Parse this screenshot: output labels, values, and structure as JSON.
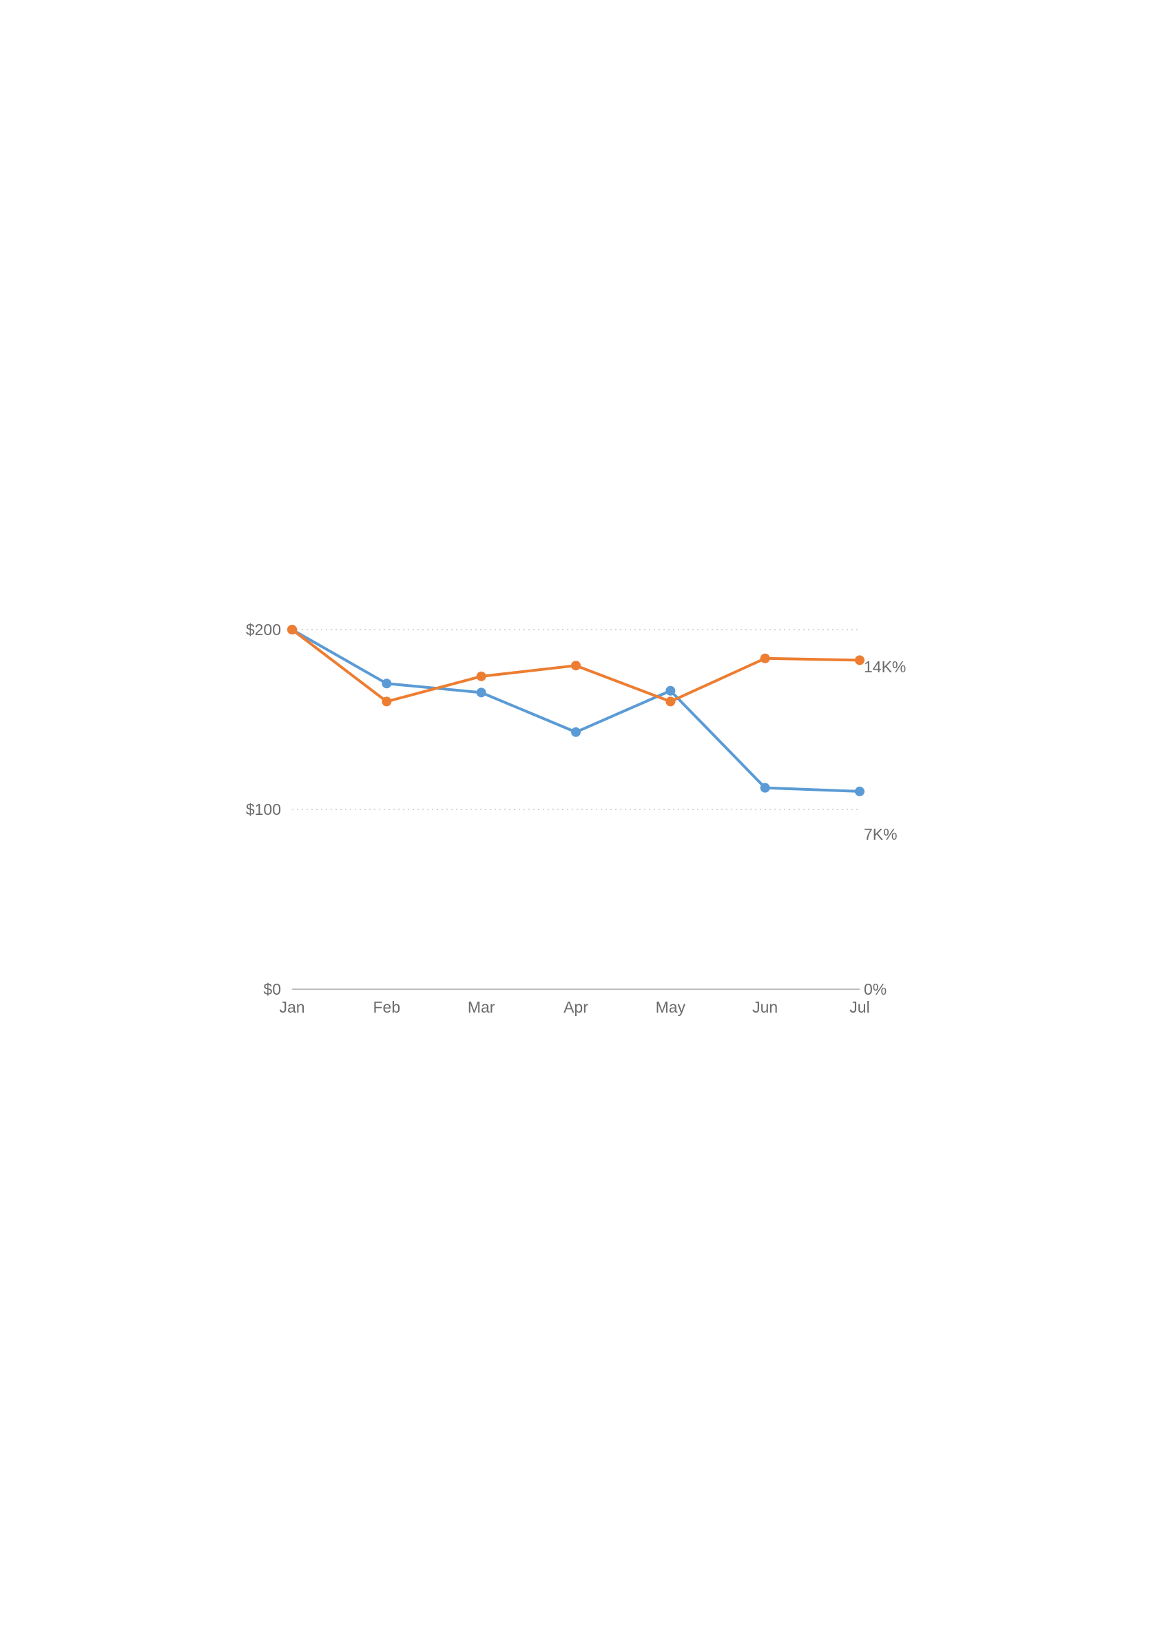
{
  "chart_data": {
    "type": "line",
    "title": "",
    "xlabel": "",
    "ylabel": "",
    "categories": [
      "Jan",
      "Feb",
      "Mar",
      "Apr",
      "May",
      "Jun",
      "Jul"
    ],
    "y_axis_left": {
      "ticks": [
        "$0",
        "$100",
        "$200"
      ],
      "tick_values": [
        0,
        100,
        200
      ],
      "ylim": [
        0,
        200
      ]
    },
    "y_axis_right": {
      "ticks": [
        "0%",
        "7K%",
        "14K%"
      ],
      "tick_values": [
        0,
        7000,
        14000
      ],
      "ylim": [
        0,
        15000
      ]
    },
    "grid": "dotted horizontal at $100 and $200",
    "legend": "none",
    "series": [
      {
        "axis": "left",
        "color": "#5b9bd5",
        "values": [
          200,
          170,
          165,
          143,
          166,
          112,
          110
        ]
      },
      {
        "axis": "left",
        "color": "#ed7d31",
        "values": [
          200,
          160,
          174,
          180,
          160,
          184,
          183
        ]
      }
    ]
  }
}
